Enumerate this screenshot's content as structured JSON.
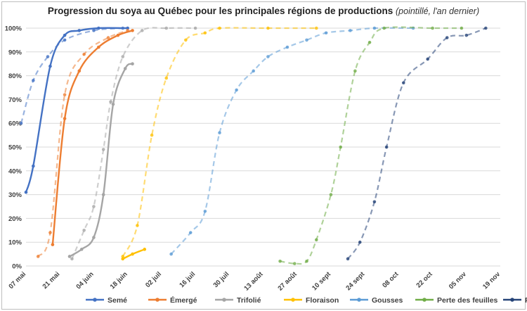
{
  "chart_data": {
    "type": "line",
    "title": "Progression du soya au Québec pour les principales régions de productions",
    "subtitle": "(pointillé, l'an dernier)",
    "x_tick_labels": [
      "07 mai",
      "21 mai",
      "04 juin",
      "18 juin",
      "02 juil",
      "16 juil",
      "30 juil",
      "13 août",
      "27 août",
      "10 sept",
      "24 sept",
      "08 oct",
      "22 oct",
      "05 nov",
      "19 nov"
    ],
    "xlim_days": [
      0,
      196
    ],
    "ylim": [
      0,
      100
    ],
    "y_tick_labels": [
      "0%",
      "10%",
      "20%",
      "30%",
      "40%",
      "50%",
      "60%",
      "70%",
      "80%",
      "90%",
      "100%"
    ],
    "grid": "horizontal",
    "legend_position": "bottom",
    "series": [
      {
        "name": "Semé",
        "color": "#4472C4",
        "current": [
          [
            0,
            31
          ],
          [
            3,
            42
          ],
          [
            10,
            84
          ],
          [
            16,
            97
          ],
          [
            22,
            99
          ],
          [
            30,
            100
          ],
          [
            42,
            100
          ]
        ],
        "previous": [
          [
            -2,
            60
          ],
          [
            3,
            78
          ],
          [
            9,
            88
          ],
          [
            16,
            95
          ],
          [
            28,
            99
          ],
          [
            40,
            100
          ]
        ]
      },
      {
        "name": "Émergé",
        "color": "#ED7D31",
        "current": [
          [
            11,
            9
          ],
          [
            16,
            62
          ],
          [
            22,
            82
          ],
          [
            30,
            92
          ],
          [
            38,
            97
          ],
          [
            44,
            99
          ]
        ],
        "previous": [
          [
            5,
            4
          ],
          [
            10,
            14
          ],
          [
            16,
            72
          ],
          [
            24,
            89
          ],
          [
            34,
            96
          ],
          [
            42,
            99
          ]
        ]
      },
      {
        "name": "Trifolié",
        "color": "#A5A5A5",
        "current": [
          [
            18,
            4
          ],
          [
            23,
            7
          ],
          [
            28,
            12
          ],
          [
            32,
            30
          ],
          [
            36,
            68
          ],
          [
            41,
            83
          ],
          [
            44,
            85
          ]
        ],
        "previous": [
          [
            19,
            3
          ],
          [
            24,
            15
          ],
          [
            28,
            25
          ],
          [
            32,
            49
          ],
          [
            35,
            69
          ],
          [
            40,
            88
          ],
          [
            48,
            99
          ],
          [
            58,
            100
          ],
          [
            70,
            100
          ]
        ]
      },
      {
        "name": "Floraison",
        "color": "#FFC000",
        "current": [
          [
            40,
            3
          ],
          [
            44,
            5
          ],
          [
            49,
            7
          ]
        ],
        "previous": [
          [
            40,
            4
          ],
          [
            46,
            17
          ],
          [
            52,
            55
          ],
          [
            58,
            79
          ],
          [
            66,
            95
          ],
          [
            74,
            98
          ],
          [
            80,
            100
          ],
          [
            100,
            100
          ],
          [
            120,
            100
          ]
        ]
      },
      {
        "name": "Gousses",
        "color": "#5B9BD5",
        "current": [],
        "previous": [
          [
            60,
            5
          ],
          [
            68,
            14
          ],
          [
            74,
            23
          ],
          [
            80,
            56
          ],
          [
            87,
            74
          ],
          [
            94,
            82
          ],
          [
            100,
            88
          ],
          [
            108,
            92
          ],
          [
            116,
            95
          ],
          [
            124,
            98
          ],
          [
            134,
            99
          ],
          [
            144,
            100
          ],
          [
            160,
            100
          ]
        ]
      },
      {
        "name": "Perte des feuilles",
        "color": "#70AD47",
        "current": [],
        "previous": [
          [
            105,
            2
          ],
          [
            111,
            1
          ],
          [
            116,
            2
          ],
          [
            120,
            11
          ],
          [
            126,
            30
          ],
          [
            130,
            50
          ],
          [
            136,
            82
          ],
          [
            142,
            94
          ],
          [
            148,
            100
          ],
          [
            168,
            100
          ],
          [
            180,
            100
          ]
        ]
      },
      {
        "name": "Récolte",
        "color": "#264478",
        "current": [],
        "previous": [
          [
            133,
            3
          ],
          [
            138,
            10
          ],
          [
            144,
            27
          ],
          [
            149,
            50
          ],
          [
            156,
            77
          ],
          [
            166,
            87
          ],
          [
            174,
            96
          ],
          [
            182,
            97
          ],
          [
            190,
            100
          ]
        ]
      }
    ]
  }
}
